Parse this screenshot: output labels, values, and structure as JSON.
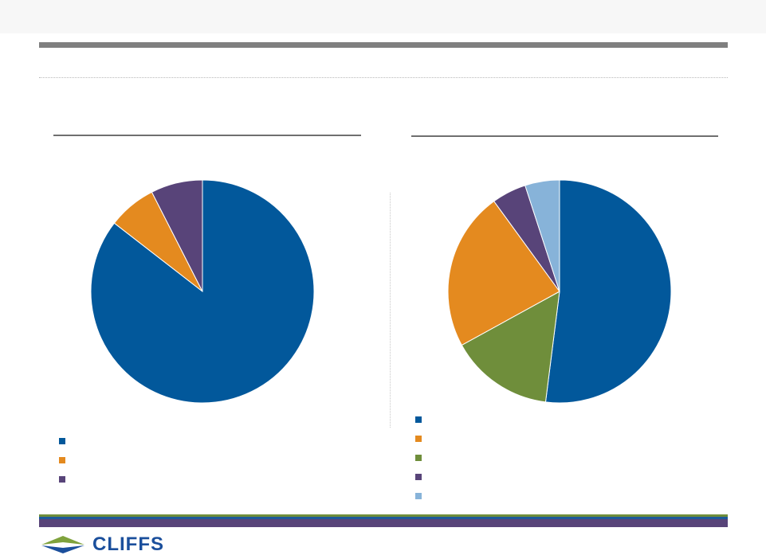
{
  "colors": {
    "navy": "#02589b",
    "orange": "#e48a1f",
    "green": "#6f8e3b",
    "purple": "#584479",
    "light_blue": "#87b3d9",
    "footer_green": "#6f8e3b",
    "footer_blue": "#1d5a9a",
    "footer_purple": "#584479"
  },
  "chart_data": [
    {
      "type": "pie",
      "title": "",
      "slices": [
        {
          "label": "",
          "value": 85.5,
          "color": "#02589b"
        },
        {
          "label": "",
          "value": 7.0,
          "color": "#e48a1f"
        },
        {
          "label": "",
          "value": 7.5,
          "color": "#584479"
        }
      ],
      "legend": "bottom-left"
    },
    {
      "type": "pie",
      "title": "",
      "slices": [
        {
          "label": "",
          "value": 52.0,
          "color": "#02589b"
        },
        {
          "label": "",
          "value": 15.0,
          "color": "#6f8e3b"
        },
        {
          "label": "",
          "value": 23.0,
          "color": "#e48a1f"
        },
        {
          "label": "",
          "value": 5.0,
          "color": "#584479"
        },
        {
          "label": "",
          "value": 5.0,
          "color": "#87b3d9"
        }
      ],
      "legend": "bottom-left",
      "legend_order": [
        "#02589b",
        "#e48a1f",
        "#6f8e3b",
        "#584479",
        "#87b3d9"
      ]
    }
  ],
  "logo": {
    "text": "CLIFFS"
  }
}
